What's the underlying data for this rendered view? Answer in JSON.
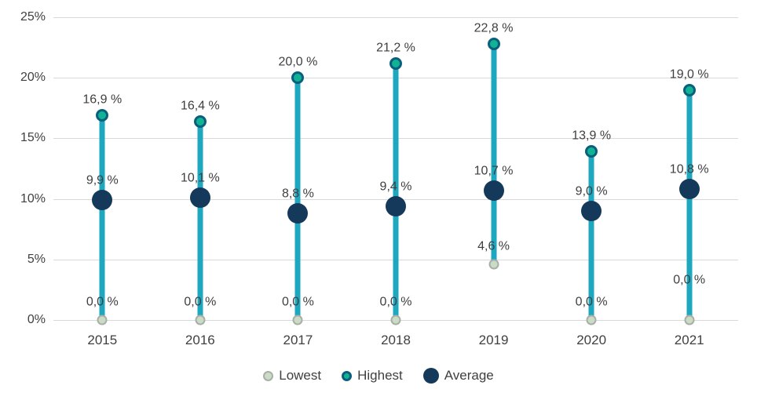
{
  "chart_data": {
    "type": "scatter",
    "subtype": "range-lollipop",
    "title": "",
    "xlabel": "",
    "ylabel": "",
    "categories": [
      "2015",
      "2016",
      "2017",
      "2018",
      "2019",
      "2020",
      "2021"
    ],
    "series": [
      {
        "name": "Lowest",
        "values": [
          0.0,
          0.0,
          0.0,
          0.0,
          4.6,
          0.0,
          0.0
        ],
        "labels": [
          "0,0 %",
          "0,0 %",
          "0,0 %",
          "0,0 %",
          "4,6 %",
          "0,0 %",
          "0,0 %"
        ],
        "label_dy": [
          0,
          0,
          0,
          0,
          0,
          0,
          -28
        ],
        "marker": {
          "fill": "#cbdcc6",
          "border": "#a9afa6",
          "border_width": 2,
          "size": 13
        }
      },
      {
        "name": "Highest",
        "values": [
          16.9,
          16.4,
          20.0,
          21.2,
          22.8,
          13.9,
          19.0
        ],
        "labels": [
          "16,9 %",
          "16,4 %",
          "20,0 %",
          "21,2 %",
          "22,8 %",
          "13,9 %",
          "19,0 %"
        ],
        "label_dy": [
          0,
          0,
          0,
          0,
          0,
          0,
          0
        ],
        "marker": {
          "fill": "#12b394",
          "border": "#0a607c",
          "border_width": 3,
          "size": 16
        }
      },
      {
        "name": "Average",
        "values": [
          9.9,
          10.1,
          8.8,
          9.4,
          10.7,
          9.0,
          10.8
        ],
        "labels": [
          "9,9 %",
          "10,1 %",
          "8,8 %",
          "9,4 %",
          "10,7 %",
          "9,0 %",
          "10,8 %"
        ],
        "label_dy": [
          0,
          0,
          0,
          0,
          0,
          0,
          0
        ],
        "marker": {
          "fill": "#14395b",
          "border": "#14395b",
          "border_width": 0,
          "size": 26
        }
      }
    ],
    "connector_color": "#1ea8bf",
    "connector_width": 7,
    "ylim": [
      0,
      25
    ],
    "yticks": [
      {
        "value": 0,
        "label": "0%"
      },
      {
        "value": 5,
        "label": "5%"
      },
      {
        "value": 10,
        "label": "10%"
      },
      {
        "value": 15,
        "label": "15%"
      },
      {
        "value": 20,
        "label": "20%"
      },
      {
        "value": 25,
        "label": "25%"
      }
    ],
    "grid": true,
    "gridline_color": "#d9d9d9",
    "text_color": "#404040",
    "legend_position": "bottom",
    "legend": [
      {
        "label": "Lowest"
      },
      {
        "label": "Highest"
      },
      {
        "label": "Average"
      }
    ]
  }
}
